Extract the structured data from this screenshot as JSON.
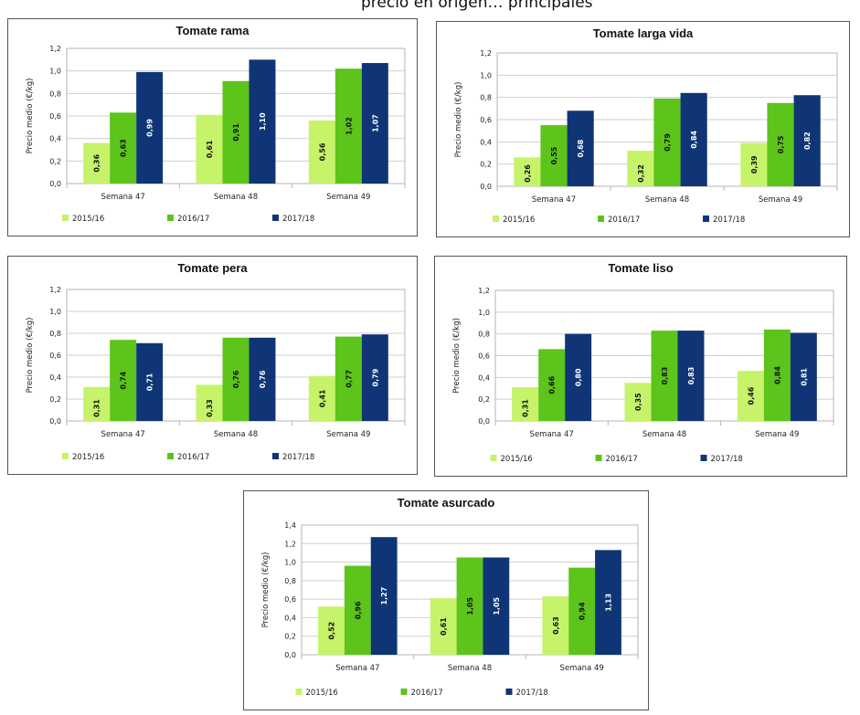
{
  "header": {
    "text": "precio en origen… principales"
  },
  "chart_data": [
    {
      "type": "bar",
      "title": "Tomate rama",
      "ylabel": "Precio medio (€/kg)",
      "categories": [
        "Semana 47",
        "Semana 48",
        "Semana 49"
      ],
      "ylim": [
        0,
        1.2
      ],
      "yticks": [
        "0,0",
        "0,2",
        "0,4",
        "0,6",
        "0,8",
        "1,0",
        "1,2"
      ],
      "series": [
        {
          "name": "2015/16",
          "color": "#c6f36a",
          "values": [
            0.36,
            0.61,
            0.56
          ],
          "labels": [
            "0,36",
            "0,61",
            "0,56"
          ]
        },
        {
          "name": "2016/17",
          "color": "#5cc41a",
          "values": [
            0.63,
            0.91,
            1.02
          ],
          "labels": [
            "0,63",
            "0,91",
            "1,02"
          ]
        },
        {
          "name": "2017/18",
          "color": "#0f3576",
          "values": [
            0.99,
            1.1,
            1.07
          ],
          "labels": [
            "0,99",
            "1,10",
            "1,07"
          ]
        }
      ],
      "legend": "bottom",
      "grid": true
    },
    {
      "type": "bar",
      "title": "Tomate larga vida",
      "ylabel": "Precio medio (€/kg)",
      "categories": [
        "Semana 47",
        "Semana 48",
        "Semana 49"
      ],
      "ylim": [
        0,
        1.2
      ],
      "yticks": [
        "0,0",
        "0,2",
        "0,4",
        "0,6",
        "0,8",
        "1,0",
        "1,2"
      ],
      "series": [
        {
          "name": "2015/16",
          "color": "#c6f36a",
          "values": [
            0.26,
            0.32,
            0.39
          ],
          "labels": [
            "0,26",
            "0,32",
            "0,39"
          ]
        },
        {
          "name": "2016/17",
          "color": "#5cc41a",
          "values": [
            0.55,
            0.79,
            0.75
          ],
          "labels": [
            "0,55",
            "0,79",
            "0,75"
          ]
        },
        {
          "name": "2017/18",
          "color": "#0f3576",
          "values": [
            0.68,
            0.84,
            0.82
          ],
          "labels": [
            "0,68",
            "0,84",
            "0,82"
          ]
        }
      ],
      "legend": "bottom",
      "grid": true
    },
    {
      "type": "bar",
      "title": "Tomate pera",
      "ylabel": "Precio medio (€/kg)",
      "categories": [
        "Semana 47",
        "Semana 48",
        "Semana 49"
      ],
      "ylim": [
        0,
        1.2
      ],
      "yticks": [
        "0,0",
        "0,2",
        "0,4",
        "0,6",
        "0,8",
        "1,0",
        "1,2"
      ],
      "series": [
        {
          "name": "2015/16",
          "color": "#c6f36a",
          "values": [
            0.31,
            0.33,
            0.41
          ],
          "labels": [
            "0,31",
            "0,33",
            "0,41"
          ]
        },
        {
          "name": "2016/17",
          "color": "#5cc41a",
          "values": [
            0.74,
            0.76,
            0.77
          ],
          "labels": [
            "0,74",
            "0,76",
            "0,77"
          ]
        },
        {
          "name": "2017/18",
          "color": "#0f3576",
          "values": [
            0.71,
            0.76,
            0.79
          ],
          "labels": [
            "0,71",
            "0,76",
            "0,79"
          ]
        }
      ],
      "legend": "bottom",
      "grid": true
    },
    {
      "type": "bar",
      "title": "Tomate liso",
      "ylabel": "Precio medio (€/kg)",
      "categories": [
        "Semana 47",
        "Semana 48",
        "Semana 49"
      ],
      "ylim": [
        0,
        1.2
      ],
      "yticks": [
        "0,0",
        "0,2",
        "0,4",
        "0,6",
        "0,8",
        "1,0",
        "1,2"
      ],
      "series": [
        {
          "name": "2015/16",
          "color": "#c6f36a",
          "values": [
            0.31,
            0.35,
            0.46
          ],
          "labels": [
            "0,31",
            "0,35",
            "0,46"
          ]
        },
        {
          "name": "2016/17",
          "color": "#5cc41a",
          "values": [
            0.66,
            0.83,
            0.84
          ],
          "labels": [
            "0,66",
            "0,83",
            "0,84"
          ]
        },
        {
          "name": "2017/18",
          "color": "#0f3576",
          "values": [
            0.8,
            0.83,
            0.81
          ],
          "labels": [
            "0,80",
            "0,83",
            "0,81"
          ]
        }
      ],
      "legend": "bottom",
      "grid": true
    },
    {
      "type": "bar",
      "title": "Tomate asurcado",
      "ylabel": "Precio medio (€/kg)",
      "categories": [
        "Semana 47",
        "Semana 48",
        "Semana 49"
      ],
      "ylim": [
        0,
        1.4
      ],
      "yticks": [
        "0,0",
        "0,2",
        "0,4",
        "0,6",
        "0,8",
        "1,0",
        "1,2",
        "1,4"
      ],
      "series": [
        {
          "name": "2015/16",
          "color": "#c6f36a",
          "values": [
            0.52,
            0.61,
            0.63
          ],
          "labels": [
            "0,52",
            "0,61",
            "0,63"
          ]
        },
        {
          "name": "2016/17",
          "color": "#5cc41a",
          "values": [
            0.96,
            1.05,
            0.94
          ],
          "labels": [
            "0,96",
            "1,05",
            "0,94"
          ]
        },
        {
          "name": "2017/18",
          "color": "#0f3576",
          "values": [
            1.27,
            1.05,
            1.13
          ],
          "labels": [
            "1,27",
            "1,05",
            "1,13"
          ]
        }
      ],
      "legend": "bottom",
      "grid": true
    }
  ]
}
